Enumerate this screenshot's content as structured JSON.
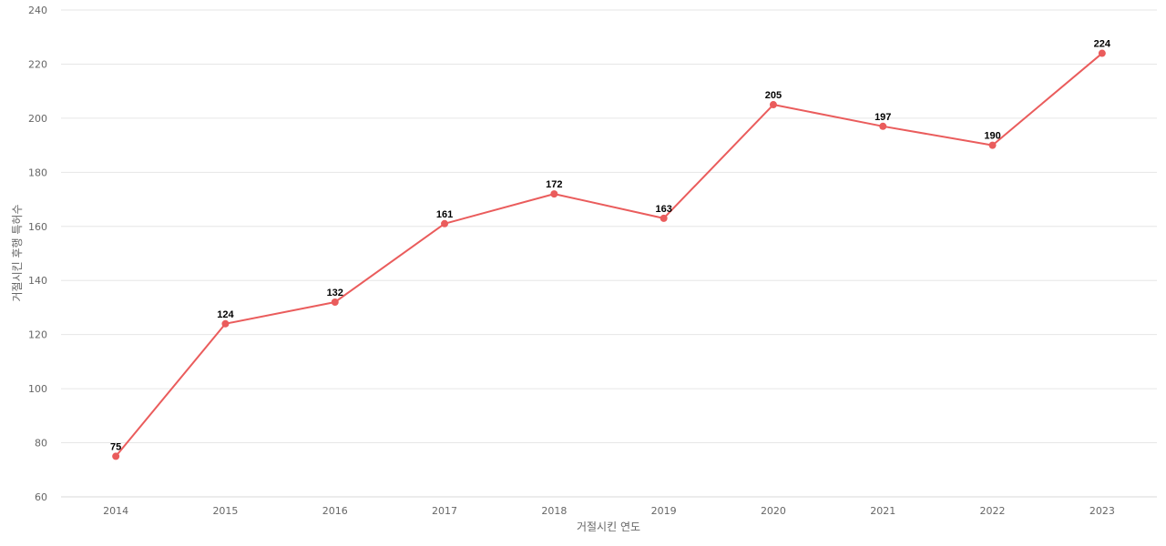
{
  "chart_data": {
    "type": "line",
    "title": "",
    "xlabel": "거절시킨 연도",
    "ylabel": "거절시킨 후행 특허수",
    "categories": [
      "2014",
      "2015",
      "2016",
      "2017",
      "2018",
      "2019",
      "2020",
      "2021",
      "2022",
      "2023"
    ],
    "series": [
      {
        "values": [
          75,
          124,
          132,
          161,
          172,
          163,
          205,
          197,
          190,
          224
        ],
        "color": "#ea5c5c"
      }
    ],
    "ylim": [
      60,
      240
    ],
    "yticks": [
      60,
      80,
      100,
      120,
      140,
      160,
      180,
      200,
      220,
      240
    ],
    "grid": true,
    "legend": "none",
    "data_labels": true
  }
}
